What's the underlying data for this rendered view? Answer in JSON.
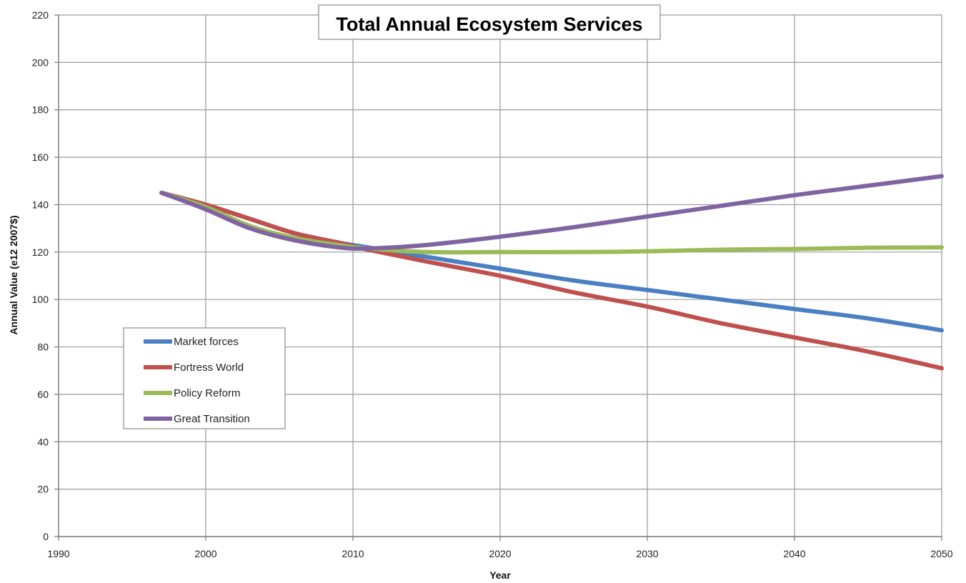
{
  "chart_data": {
    "type": "line",
    "title": "Total Annual Ecosystem Services",
    "xlabel": "Year",
    "ylabel": "Annual Value (e12 2007$)",
    "xlim": [
      1990,
      2050
    ],
    "ylim": [
      0,
      220
    ],
    "xticks": [
      1990,
      2000,
      2010,
      2020,
      2030,
      2040,
      2050
    ],
    "yticks": [
      0,
      20,
      40,
      60,
      80,
      100,
      120,
      140,
      160,
      180,
      200,
      220
    ],
    "grid": true,
    "legend_position": "left",
    "series": [
      {
        "name": "Market forces",
        "color": "#4a7fc1",
        "x": [
          1997,
          2000,
          2003,
          2006,
          2009,
          2011,
          2015,
          2020,
          2025,
          2030,
          2035,
          2040,
          2045,
          2050
        ],
        "y": [
          145,
          140,
          134,
          128,
          124,
          122,
          118,
          113,
          108,
          104,
          100,
          96,
          92,
          87
        ]
      },
      {
        "name": "Fortress World",
        "color": "#c0504d",
        "x": [
          1997,
          2000,
          2003,
          2006,
          2009,
          2011,
          2015,
          2020,
          2025,
          2030,
          2035,
          2040,
          2045,
          2050
        ],
        "y": [
          145,
          140,
          134,
          128,
          124,
          121,
          116,
          110,
          103,
          97,
          90,
          84,
          78,
          71
        ]
      },
      {
        "name": "Policy Reform",
        "color": "#9bbb59",
        "x": [
          1997,
          2000,
          2003,
          2006,
          2009,
          2011,
          2015,
          2020,
          2025,
          2030,
          2035,
          2040,
          2045,
          2050
        ],
        "y": [
          145,
          139,
          131,
          126,
          123,
          121.5,
          120,
          120,
          120,
          120.3,
          121,
          121.3,
          121.8,
          122
        ]
      },
      {
        "name": "Great Transition",
        "color": "#8064a2",
        "x": [
          1997,
          2000,
          2003,
          2006,
          2009,
          2011,
          2015,
          2020,
          2025,
          2030,
          2035,
          2040,
          2045,
          2050
        ],
        "y": [
          145,
          138,
          130,
          125,
          122,
          121.5,
          123,
          126.5,
          130.5,
          135,
          139.5,
          144,
          148,
          152
        ]
      }
    ]
  }
}
